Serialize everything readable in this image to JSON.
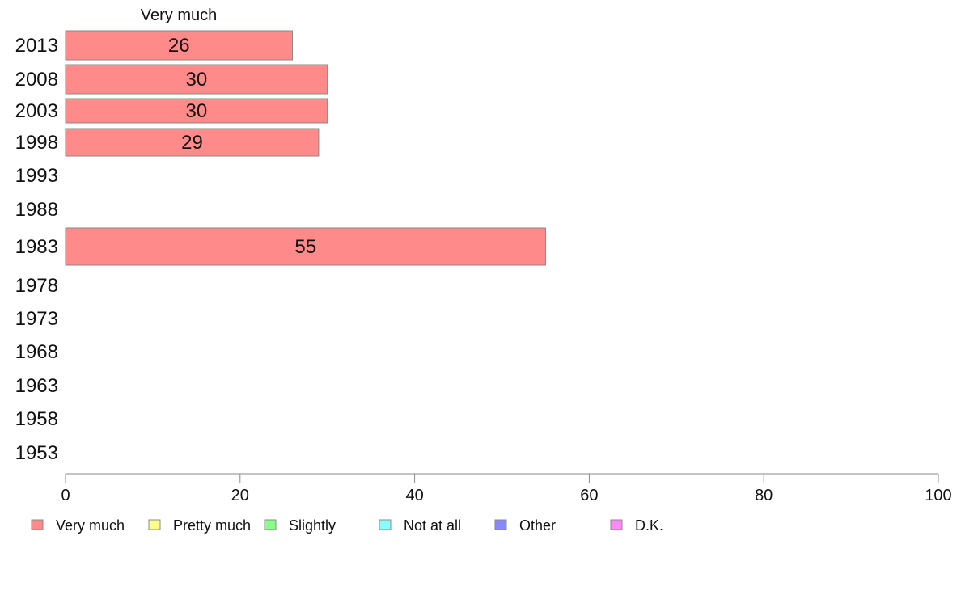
{
  "chart_data": {
    "type": "bar",
    "orientation": "horizontal",
    "categories": [
      "2013",
      "2008",
      "2003",
      "1998",
      "1993",
      "1988",
      "1983",
      "1978",
      "1973",
      "1968",
      "1963",
      "1958",
      "1953"
    ],
    "series": [
      {
        "name": "Very much",
        "color": "#ff8a8a",
        "values": [
          26,
          30,
          30,
          29,
          null,
          null,
          55,
          null,
          null,
          null,
          null,
          null,
          null
        ]
      },
      {
        "name": "Pretty much",
        "color": "#ffff88",
        "values": [
          null,
          null,
          null,
          null,
          null,
          null,
          null,
          null,
          null,
          null,
          null,
          null,
          null
        ]
      },
      {
        "name": "Slightly",
        "color": "#88ff88",
        "values": [
          null,
          null,
          null,
          null,
          null,
          null,
          null,
          null,
          null,
          null,
          null,
          null,
          null
        ]
      },
      {
        "name": "Not at all",
        "color": "#88ffff",
        "values": [
          null,
          null,
          null,
          null,
          null,
          null,
          null,
          null,
          null,
          null,
          null,
          null,
          null
        ]
      },
      {
        "name": "Other",
        "color": "#8888ff",
        "values": [
          null,
          null,
          null,
          null,
          null,
          null,
          null,
          null,
          null,
          null,
          null,
          null,
          null
        ]
      },
      {
        "name": "D.K.",
        "color": "#ff88ff",
        "values": [
          null,
          null,
          null,
          null,
          null,
          null,
          null,
          null,
          null,
          null,
          null,
          null,
          null
        ]
      }
    ],
    "data_labels": [
      "26",
      "30",
      "30",
      "29",
      "",
      "",
      "55",
      "",
      "",
      "",
      "",
      "",
      ""
    ],
    "series_title": "Very much",
    "xlim": [
      0,
      100
    ],
    "xticks": [
      "0",
      "20",
      "40",
      "60",
      "80",
      "100"
    ],
    "legend": [
      "Very much",
      "Pretty much",
      "Slightly",
      "Not at all",
      "Other",
      "D.K."
    ],
    "legend_position": "bottom",
    "grid": false
  }
}
